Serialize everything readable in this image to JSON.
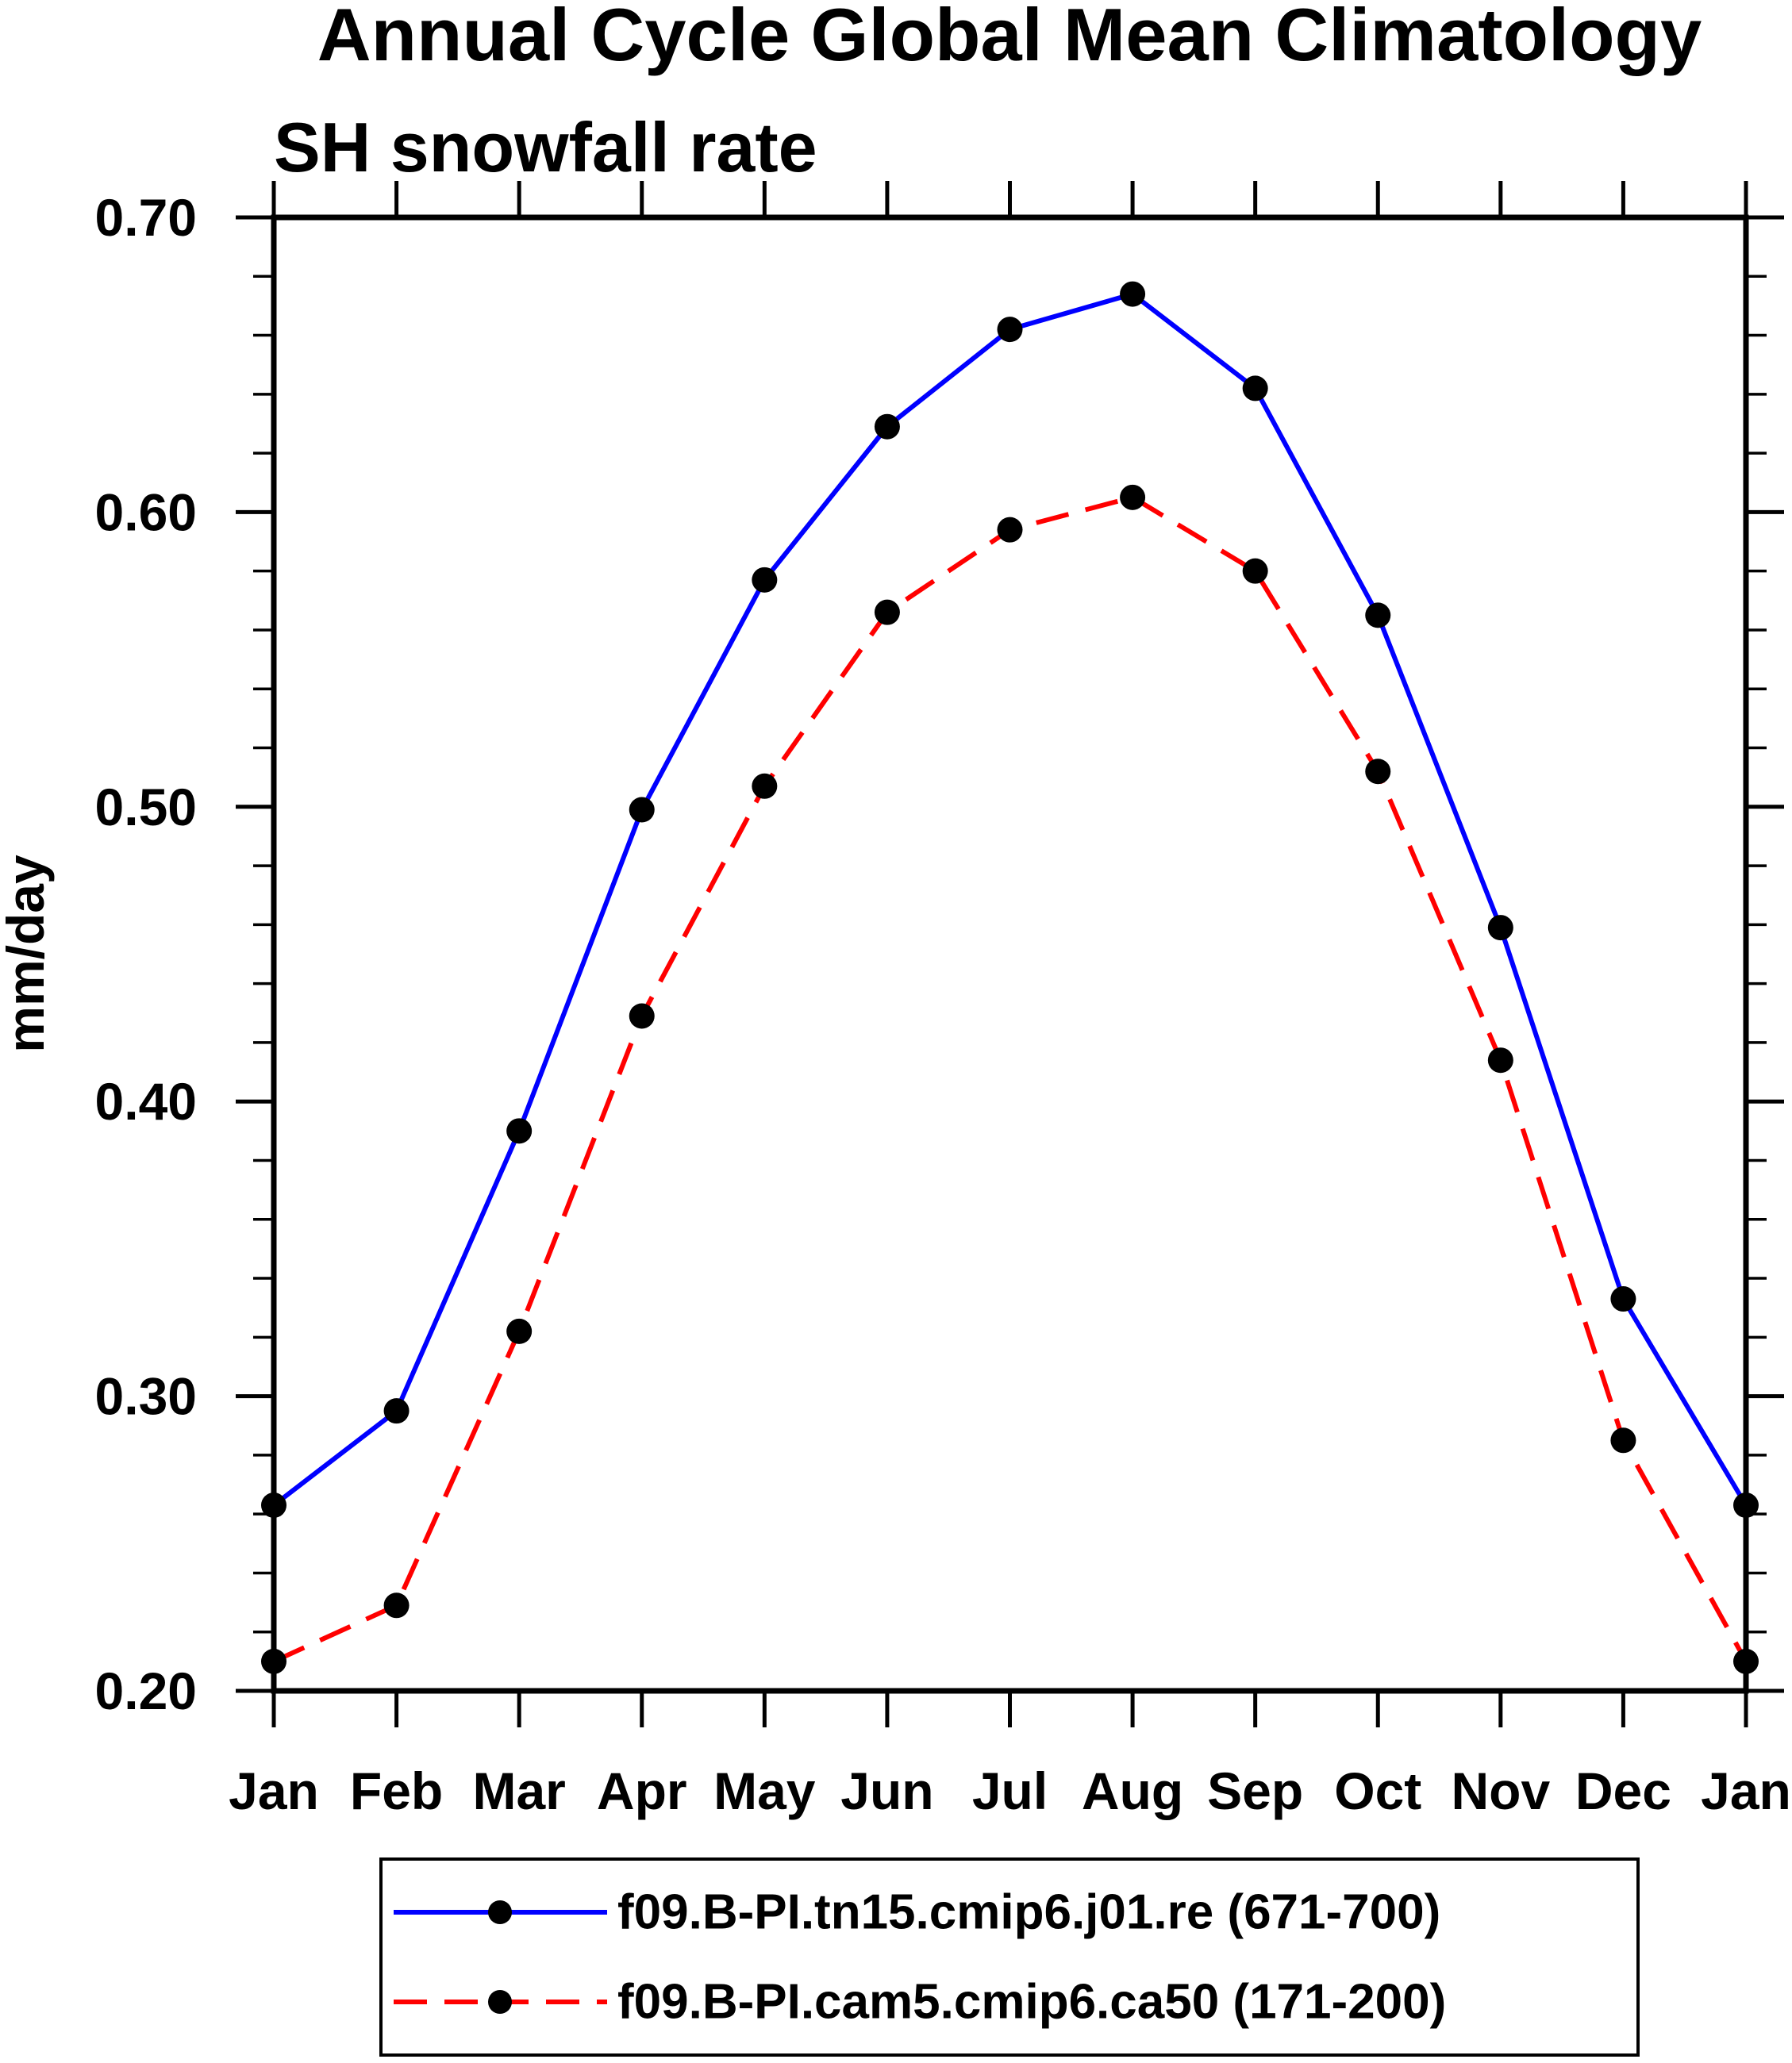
{
  "title": "Annual Cycle Global Mean Climatology",
  "subtitle": "SH snowfall rate",
  "chart_data": {
    "type": "line",
    "title": "Annual Cycle Global Mean Climatology",
    "subtitle": "SH snowfall rate",
    "xlabel": "",
    "ylabel": "mm/day",
    "ylim": [
      0.2,
      0.7
    ],
    "y_major_step": 0.1,
    "y_minor_step": 0.02,
    "y_tick_labels": [
      "0.20",
      "0.30",
      "0.40",
      "0.50",
      "0.60",
      "0.70"
    ],
    "categories": [
      "Jan",
      "Feb",
      "Mar",
      "Apr",
      "May",
      "Jun",
      "Jul",
      "Aug",
      "Sep",
      "Oct",
      "Nov",
      "Dec",
      "Jan"
    ],
    "grid": false,
    "legend_position": "bottom",
    "tick_color": "#000000",
    "series": [
      {
        "name": "f09.B-PI.tn15.cmip6.j01.re (671-700)",
        "color": "#0000ff",
        "line_style": "solid",
        "marker": "filled-circle",
        "marker_color": "#000000",
        "values": [
          0.263,
          0.295,
          0.39,
          0.499,
          0.577,
          0.629,
          0.662,
          0.674,
          0.642,
          0.565,
          0.459,
          0.333,
          0.263
        ]
      },
      {
        "name": "f09.B-PI.cam5.cmip6.ca50 (171-200)",
        "color": "#ff0000",
        "line_style": "dashed",
        "marker": "filled-circle",
        "marker_color": "#000000",
        "values": [
          0.21,
          0.229,
          0.322,
          0.429,
          0.507,
          0.566,
          0.594,
          0.605,
          0.58,
          0.512,
          0.414,
          0.285,
          0.21
        ]
      }
    ]
  }
}
